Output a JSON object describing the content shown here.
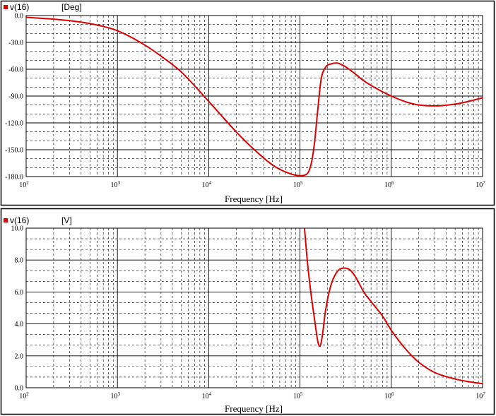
{
  "chart_data": [
    {
      "type": "line",
      "xscale": "log",
      "xlim": [
        100,
        10000000
      ],
      "ylim": [
        -180,
        0
      ],
      "xlabel": "Frequency [Hz]",
      "ylabel": "",
      "legend": {
        "label": "v(16)",
        "unit": "[Deg]",
        "placement": "top-left"
      },
      "yticks": [
        "0.0",
        "-30.0",
        "-60.0",
        "-90.0",
        "-120.0",
        "-150.0",
        "-180.0"
      ],
      "xticks": [
        {
          "base": "10",
          "exp": "2"
        },
        {
          "base": "10",
          "exp": "3"
        },
        {
          "base": "10",
          "exp": "4"
        },
        {
          "base": "10",
          "exp": "5"
        },
        {
          "base": "10",
          "exp": "6"
        },
        {
          "base": "10",
          "exp": "7"
        }
      ],
      "grid": true,
      "color": "#dd0000",
      "series": [
        {
          "name": "v(16)",
          "x": [
            100,
            200,
            316,
            500,
            1000,
            2000,
            3160,
            5000,
            10000,
            20000,
            31600,
            50000,
            70000,
            100000,
            115000,
            125000,
            135000,
            145000,
            155000,
            170000,
            190000,
            220000,
            250000,
            300000,
            400000,
            500000,
            700000,
            1000000,
            1500000,
            2000000,
            3000000,
            5000000,
            7000000,
            10000000
          ],
          "values": [
            -2,
            -4,
            -6,
            -9,
            -17,
            -33,
            -47,
            -63,
            -96,
            -130,
            -150,
            -167,
            -175,
            -179,
            -178,
            -174,
            -162,
            -140,
            -110,
            -72,
            -58,
            -54,
            -53,
            -56,
            -65,
            -73,
            -82,
            -90,
            -97,
            -100,
            -101,
            -99,
            -96,
            -92
          ]
        }
      ]
    },
    {
      "type": "line",
      "xscale": "log",
      "xlim": [
        100,
        10000000
      ],
      "ylim": [
        0,
        10
      ],
      "xlabel": "Frequency [Hz]",
      "ylabel": "",
      "legend": {
        "label": "v(16)",
        "unit": "[V]",
        "placement": "top-left"
      },
      "yticks": [
        "10.0",
        "8.0",
        "6.0",
        "4.0",
        "2.0",
        "0.0"
      ],
      "xticks": [
        {
          "base": "10",
          "exp": "2"
        },
        {
          "base": "10",
          "exp": "3"
        },
        {
          "base": "10",
          "exp": "4"
        },
        {
          "base": "10",
          "exp": "5"
        },
        {
          "base": "10",
          "exp": "6"
        },
        {
          "base": "10",
          "exp": "7"
        }
      ],
      "grid": true,
      "color": "#dd0000",
      "series": [
        {
          "name": "v(16)",
          "x": [
            112000,
            120000,
            130000,
            145000,
            158000,
            165000,
            175000,
            190000,
            215000,
            250000,
            300000,
            350000,
            400000,
            500000,
            600000,
            800000,
            1000000,
            1500000,
            2000000,
            3000000,
            5000000,
            7000000,
            10000000
          ],
          "values": [
            10.0,
            8.0,
            6.2,
            4.2,
            2.8,
            2.6,
            3.2,
            4.8,
            6.3,
            7.2,
            7.5,
            7.4,
            7.0,
            6.0,
            5.4,
            4.5,
            3.6,
            2.3,
            1.6,
            0.95,
            0.55,
            0.38,
            0.25
          ]
        }
      ]
    }
  ]
}
